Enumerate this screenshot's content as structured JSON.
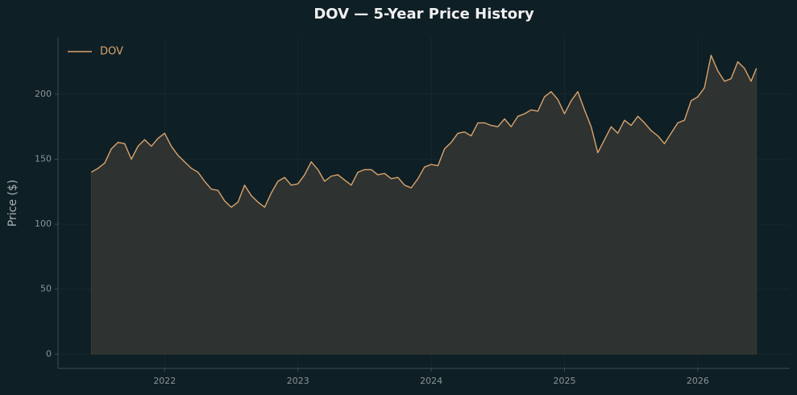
{
  "chart_data": {
    "type": "area",
    "title": "DOV — 5-Year Price History",
    "ylabel": "Price ($)",
    "x": [
      2021.45,
      2021.5,
      2021.55,
      2021.6,
      2021.65,
      2021.7,
      2021.75,
      2021.8,
      2021.85,
      2021.9,
      2021.95,
      2022.0,
      2022.05,
      2022.1,
      2022.15,
      2022.2,
      2022.25,
      2022.3,
      2022.35,
      2022.4,
      2022.45,
      2022.5,
      2022.55,
      2022.6,
      2022.65,
      2022.7,
      2022.75,
      2022.8,
      2022.85,
      2022.9,
      2022.95,
      2023.0,
      2023.05,
      2023.1,
      2023.15,
      2023.2,
      2023.25,
      2023.3,
      2023.35,
      2023.4,
      2023.45,
      2023.5,
      2023.55,
      2023.6,
      2023.65,
      2023.7,
      2023.75,
      2023.8,
      2023.85,
      2023.9,
      2023.95,
      2024.0,
      2024.05,
      2024.1,
      2024.15,
      2024.2,
      2024.25,
      2024.3,
      2024.35,
      2024.4,
      2024.45,
      2024.5,
      2024.55,
      2024.6,
      2024.65,
      2024.7,
      2024.75,
      2024.8,
      2024.85,
      2024.9,
      2024.95,
      2025.0,
      2025.05,
      2025.1,
      2025.15,
      2025.2,
      2025.25,
      2025.3,
      2025.35,
      2025.4,
      2025.45,
      2025.5,
      2025.55,
      2025.6,
      2025.65,
      2025.7,
      2025.75,
      2025.8,
      2025.85,
      2025.9,
      2025.95,
      2026.0,
      2026.05,
      2026.1,
      2026.15,
      2026.2,
      2026.25,
      2026.3,
      2026.35,
      2026.4,
      2026.44
    ],
    "series": [
      {
        "name": "DOV",
        "color": "#d9a46c",
        "values": [
          140,
          143,
          147,
          158,
          163,
          162,
          150,
          160,
          165,
          160,
          166,
          170,
          160,
          153,
          148,
          143,
          140,
          133,
          127,
          126,
          118,
          113,
          117,
          130,
          122,
          117,
          113,
          124,
          133,
          136,
          130,
          131,
          138,
          148,
          142,
          133,
          137,
          138,
          134,
          130,
          140,
          142,
          142,
          138,
          139,
          135,
          136,
          130,
          128,
          135,
          144,
          146,
          145,
          158,
          163,
          170,
          171,
          168,
          178,
          178,
          176,
          175,
          181,
          175,
          183,
          185,
          188,
          187,
          198,
          202,
          196,
          185,
          195,
          202,
          188,
          175,
          155,
          165,
          175,
          170,
          180,
          176,
          183,
          178,
          172,
          168,
          162,
          170,
          178,
          180,
          195,
          198,
          205,
          230,
          218,
          210,
          212,
          225,
          220,
          210,
          220
        ]
      }
    ],
    "area_color": "#2e3231",
    "xlim": [
      2021.2,
      2026.69
    ],
    "xticks": [
      2022,
      2023,
      2024,
      2025,
      2026
    ],
    "ylim": [
      -11,
      244
    ],
    "yticks": [
      0,
      50,
      100,
      150,
      200
    ],
    "grid": true,
    "legend": "upper left"
  }
}
